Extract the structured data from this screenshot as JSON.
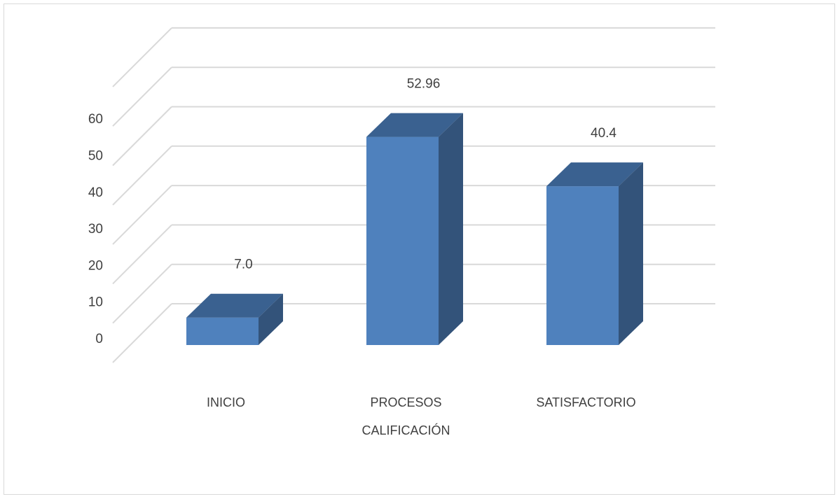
{
  "chart_data": {
    "type": "bar",
    "style": "3d-column",
    "categories": [
      [
        "INICIO"
      ],
      [
        "PROCESOS",
        "CALIFICACIÓN"
      ],
      [
        "SATISFACTORIO"
      ]
    ],
    "values": [
      7.0,
      52.96,
      40.4
    ],
    "data_labels": [
      "7.0",
      "52.96",
      "40.4"
    ],
    "ylim": [
      0,
      60
    ],
    "yticks": [
      0,
      10,
      20,
      30,
      40,
      50,
      60
    ],
    "grid": true,
    "legend": "none",
    "colors": {
      "front": "#4f81bd",
      "top": "#3a6190",
      "side": "#33537a",
      "gridline": "#d9d9d9",
      "text": "#404040"
    }
  }
}
